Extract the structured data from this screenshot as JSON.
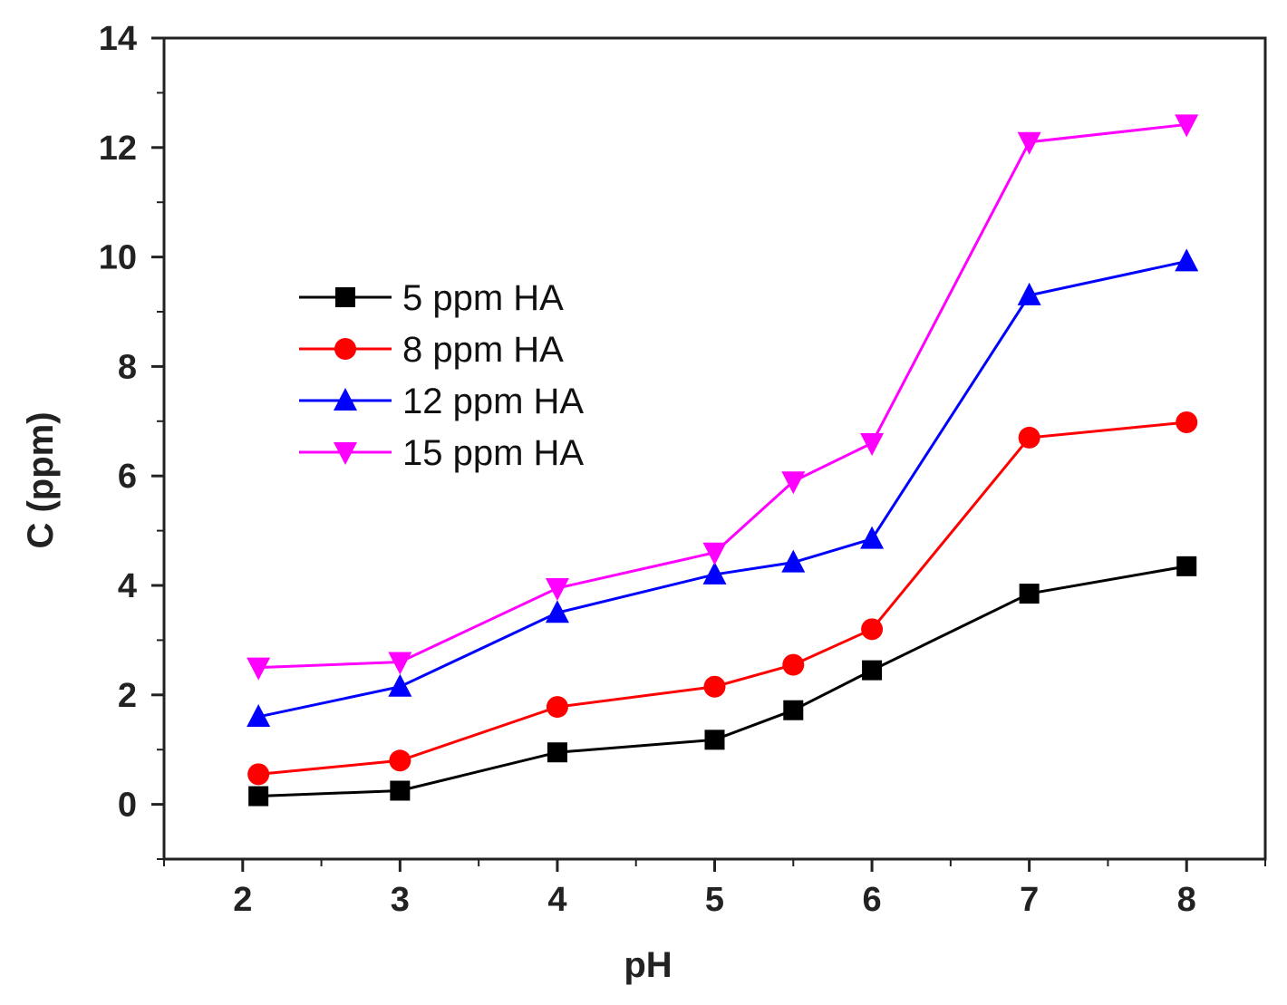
{
  "chart_data": {
    "type": "line",
    "title": "",
    "xlabel": "pH",
    "ylabel": "C (ppm)",
    "xlim": [
      1.5,
      8.5
    ],
    "ylim": [
      -1,
      14
    ],
    "xticks": [
      2,
      3,
      4,
      5,
      6,
      7,
      8
    ],
    "yticks": [
      0,
      2,
      4,
      6,
      8,
      10,
      12,
      14
    ],
    "legend_position": "center-left",
    "series": [
      {
        "name": "5 ppm HA",
        "color": "#000000",
        "marker": "square",
        "x": [
          2.1,
          3,
          4,
          5,
          5.5,
          6,
          7,
          8
        ],
        "values": [
          0.15,
          0.25,
          0.95,
          1.18,
          1.72,
          2.45,
          3.85,
          4.35
        ]
      },
      {
        "name": "8 ppm HA",
        "color": "#ff0000",
        "marker": "circle",
        "x": [
          2.1,
          3,
          4,
          5,
          5.5,
          6,
          7,
          8
        ],
        "values": [
          0.55,
          0.8,
          1.78,
          2.15,
          2.55,
          3.2,
          6.7,
          6.98
        ]
      },
      {
        "name": "12 ppm HA",
        "color": "#0000ff",
        "marker": "triangle-up",
        "x": [
          2.1,
          3,
          4,
          5,
          5.5,
          6,
          7,
          8
        ],
        "values": [
          1.6,
          2.15,
          3.5,
          4.2,
          4.42,
          4.85,
          9.3,
          9.92
        ]
      },
      {
        "name": "15 ppm HA",
        "color": "#ff00ff",
        "marker": "triangle-down",
        "x": [
          2.1,
          3,
          4,
          5,
          5.5,
          6,
          7,
          8
        ],
        "values": [
          2.5,
          2.6,
          3.95,
          4.6,
          5.9,
          6.6,
          12.1,
          12.42
        ]
      }
    ]
  }
}
